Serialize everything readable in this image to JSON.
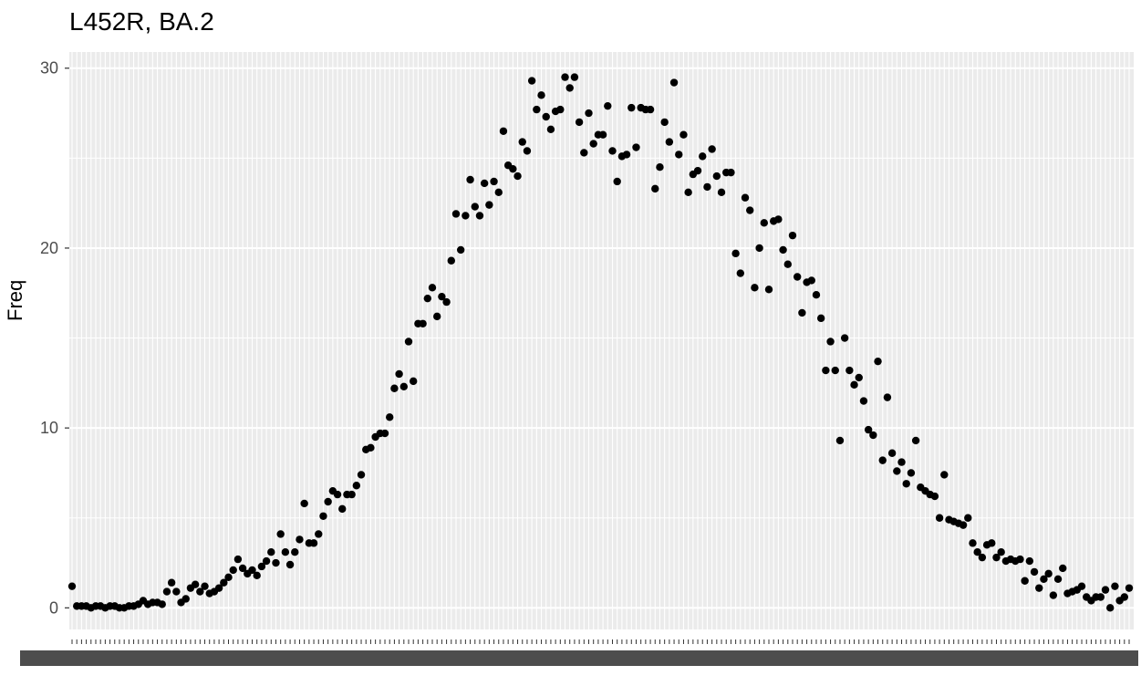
{
  "chart_data": {
    "type": "scatter",
    "title": "L452R, BA.2",
    "xlabel": "",
    "ylabel": "Freq",
    "ylim": [
      -1.2,
      30.9
    ],
    "y_ticks": [
      0,
      10,
      20,
      30
    ],
    "grid": true,
    "point_color": "#000000",
    "panel_color": "#ebebeb",
    "series": [
      {
        "values": [
          1.2,
          0.1,
          0.1,
          0.1,
          0.0,
          0.1,
          0.1,
          0.0,
          0.1,
          0.1,
          0.0,
          0.0,
          0.1,
          0.1,
          0.2,
          0.4,
          0.2,
          0.3,
          0.3,
          0.2,
          0.9,
          1.4,
          0.9,
          0.3,
          0.5,
          1.1,
          1.3,
          0.9,
          1.2,
          0.8,
          0.9,
          1.1,
          1.4,
          1.7,
          2.1,
          2.7,
          2.2,
          1.9,
          2.1,
          1.8,
          2.3,
          2.6,
          3.1,
          2.5,
          4.1,
          3.1,
          2.4,
          3.1,
          3.8,
          5.8,
          3.6,
          3.6,
          4.1,
          5.1,
          5.9,
          6.5,
          6.3,
          5.5,
          6.3,
          6.3,
          6.8,
          7.4,
          8.8,
          8.9,
          9.5,
          9.7,
          9.7,
          10.6,
          12.2,
          13.0,
          12.3,
          14.8,
          12.6,
          15.8,
          15.8,
          17.2,
          17.8,
          16.2,
          17.3,
          17.0,
          19.3,
          21.9,
          19.9,
          21.8,
          23.8,
          22.3,
          21.8,
          23.6,
          22.4,
          23.7,
          23.1,
          26.5,
          24.6,
          24.4,
          24.0,
          25.9,
          25.4,
          29.3,
          27.7,
          28.5,
          27.3,
          26.6,
          27.6,
          27.7,
          29.5,
          28.9,
          29.5,
          27.0,
          25.3,
          27.5,
          25.8,
          26.3,
          26.3,
          27.9,
          25.4,
          23.7,
          25.1,
          25.2,
          27.8,
          25.6,
          27.8,
          27.7,
          27.7,
          23.3,
          24.5,
          27.0,
          25.9,
          29.2,
          25.2,
          26.3,
          23.1,
          24.1,
          24.3,
          25.1,
          23.4,
          25.5,
          24.0,
          23.1,
          24.2,
          24.2,
          19.7,
          18.6,
          22.8,
          22.1,
          17.8,
          20.0,
          21.4,
          17.7,
          21.5,
          21.6,
          19.9,
          19.1,
          20.7,
          18.4,
          16.4,
          18.1,
          18.2,
          17.4,
          16.1,
          13.2,
          14.8,
          13.2,
          9.3,
          15.0,
          13.2,
          12.4,
          12.8,
          11.5,
          9.9,
          9.6,
          13.7,
          8.2,
          11.7,
          8.6,
          7.6,
          8.1,
          6.9,
          7.5,
          9.3,
          6.7,
          6.5,
          6.3,
          6.2,
          5.0,
          7.4,
          4.9,
          4.8,
          4.7,
          4.6,
          5.0,
          3.6,
          3.1,
          2.8,
          3.5,
          3.6,
          2.8,
          3.1,
          2.6,
          2.7,
          2.6,
          2.7,
          1.5,
          2.6,
          2.0,
          1.1,
          1.6,
          1.9,
          0.7,
          1.6,
          2.2,
          0.8,
          0.9,
          1.0,
          1.2,
          0.6,
          0.4,
          0.6,
          0.6,
          1.0,
          0.0,
          1.2,
          0.4,
          0.6,
          1.1
        ]
      }
    ]
  }
}
